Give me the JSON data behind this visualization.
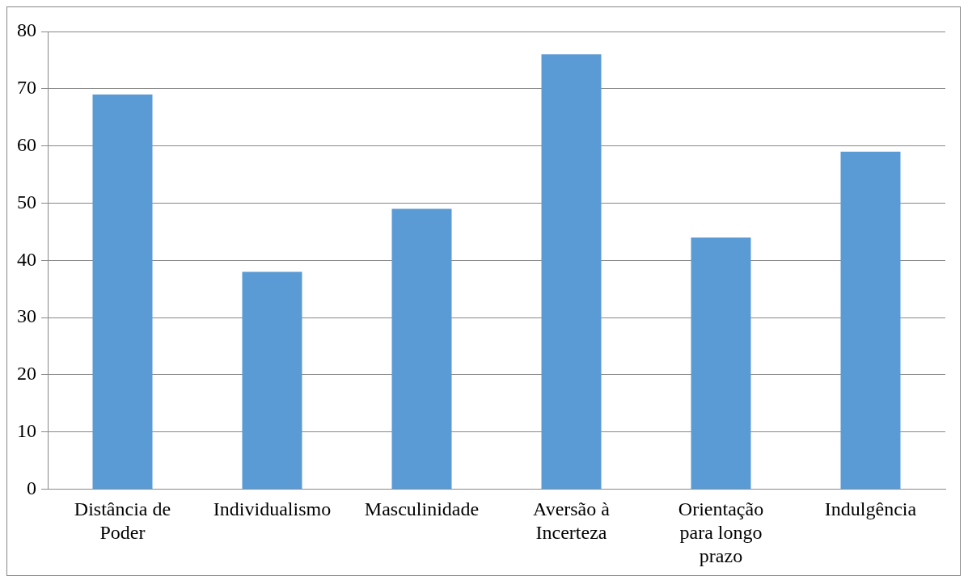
{
  "chart_data": {
    "type": "bar",
    "categories": [
      "Distância de Poder",
      "Individualismo",
      "Masculinidade",
      "Aversão à Incerteza",
      "Orientação para longo prazo",
      "Indulgência"
    ],
    "values": [
      69,
      38,
      49,
      76,
      44,
      59
    ],
    "color": "#5b9bd5",
    "ylim": [
      0,
      80
    ],
    "yticks": [
      0,
      10,
      20,
      30,
      40,
      50,
      60,
      70,
      80
    ],
    "grid": "y",
    "legend": false
  }
}
